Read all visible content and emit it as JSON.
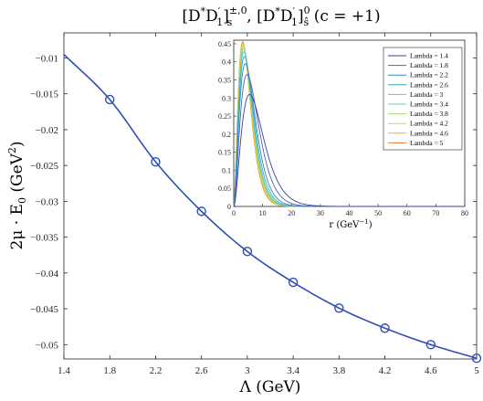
{
  "chart_data": [
    {
      "type": "line",
      "title": "[D*D'_1]^{±,0}_s, [D*D'_1]^0_ŝ (c = +1)",
      "title_parts": {
        "a": "[D",
        "a_sup": "*",
        "b": "D",
        "b_prime": "′",
        "b_sub": "1",
        "close1": "]",
        "sup1": "±,0",
        "sub1": "s",
        "sep": ", [D",
        "c_sup": "*",
        "d": "D",
        "d_prime": "′",
        "d_sub": "1",
        "close2": "]",
        "sup2": "0",
        "sub2": "ŝ",
        "tail": " (c = +1)"
      },
      "xlabel": "Λ (GeV)",
      "ylabel_parts": {
        "main": "2μ · E",
        "sub": "0",
        "unit_open": " (GeV",
        "unit_sup": "2",
        "unit_close": ")"
      },
      "xlim": [
        1.4,
        5
      ],
      "ylim": [
        -0.052,
        -0.0065
      ],
      "xticks": [
        1.4,
        1.8,
        2.2,
        2.6,
        3,
        3.4,
        3.8,
        4.2,
        4.6,
        5
      ],
      "yticks": [
        -0.01,
        -0.015,
        -0.02,
        -0.025,
        -0.03,
        -0.035,
        -0.04,
        -0.045,
        -0.05
      ],
      "series": [
        {
          "x": [
            1.4,
            1.8,
            2.2,
            2.6,
            3.0,
            3.4,
            3.8,
            4.2,
            4.6,
            5.0
          ],
          "y": [
            -0.0095,
            -0.0158,
            -0.0245,
            -0.0314,
            -0.037,
            -0.0413,
            -0.0449,
            -0.0477,
            -0.05,
            -0.0519
          ],
          "marker_x": [
            1.8,
            2.2,
            2.6,
            3.0,
            3.4,
            3.8,
            4.2,
            4.6,
            5.0
          ],
          "color": "#2f4eb5"
        }
      ],
      "grid": false
    },
    {
      "type": "line",
      "xlabel_parts": {
        "main": "r (GeV",
        "sup": "−1",
        "close": ")"
      },
      "xlim": [
        0,
        80
      ],
      "ylim": [
        0,
        0.46
      ],
      "xticks": [
        0,
        10,
        20,
        30,
        40,
        50,
        60,
        70,
        80
      ],
      "yticks": [
        0,
        0.05,
        0.1,
        0.15,
        0.2,
        0.25,
        0.3,
        0.35,
        0.4,
        0.45
      ],
      "legend_position": "top-right",
      "grid": false,
      "series": [
        {
          "name": "Lambda = 1.4",
          "peak_r": 5.5,
          "peak_y": 0.31,
          "color": "#3b3fa0"
        },
        {
          "name": "Lambda = 1.8",
          "peak_r": 4.6,
          "peak_y": 0.365,
          "color": "#4b5fc8"
        },
        {
          "name": "Lambda = 2.2",
          "peak_r": 4.0,
          "peak_y": 0.395,
          "color": "#3f86b8"
        },
        {
          "name": "Lambda = 2.6",
          "peak_r": 3.7,
          "peak_y": 0.415,
          "color": "#3aa7b4"
        },
        {
          "name": "Lambda = 3",
          "peak_r": 3.5,
          "peak_y": 0.428,
          "color": "#5cc6c8"
        },
        {
          "name": "Lambda = 3.4",
          "peak_r": 3.4,
          "peak_y": 0.437,
          "color": "#6fd0a6"
        },
        {
          "name": "Lambda = 3.8",
          "peak_r": 3.3,
          "peak_y": 0.444,
          "color": "#a9d66a"
        },
        {
          "name": "Lambda = 4.2",
          "peak_r": 3.2,
          "peak_y": 0.449,
          "color": "#e1d23a"
        },
        {
          "name": "Lambda = 4.6",
          "peak_r": 3.15,
          "peak_y": 0.453,
          "color": "#efb13a"
        },
        {
          "name": "Lambda = 5",
          "peak_r": 3.1,
          "peak_y": 0.456,
          "color": "#e8782f"
        }
      ]
    }
  ]
}
